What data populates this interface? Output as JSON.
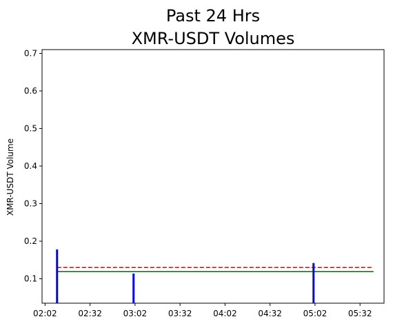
{
  "chart_data": {
    "type": "bar",
    "title": [
      "Past 24 Hrs",
      "XMR-USDT Volumes"
    ],
    "xlabel": "",
    "ylabel": "XMR-USDT Volume",
    "xlim": [
      "02:00",
      "05:48"
    ],
    "ylim": [
      0.035,
      0.71
    ],
    "x_ticks": [
      "02:02",
      "02:32",
      "03:02",
      "03:32",
      "04:02",
      "04:32",
      "05:02",
      "05:32"
    ],
    "y_ticks": [
      0.1,
      0.2,
      0.3,
      0.4,
      0.5,
      0.6,
      0.7
    ],
    "grid": false,
    "legend": "none",
    "series": [
      {
        "type": "bar",
        "color": "#0000ff",
        "x": [
          "02:10",
          "03:01",
          "05:01"
        ],
        "values": [
          0.178,
          0.114,
          0.142
        ]
      }
    ],
    "reference_lines": [
      {
        "style": "dashed",
        "color": "#ff0000",
        "value": 0.13,
        "x_range": [
          "02:10",
          "05:41"
        ]
      },
      {
        "style": "solid",
        "color": "#008000",
        "value": 0.119,
        "x_range": [
          "02:10",
          "05:41"
        ]
      }
    ]
  }
}
